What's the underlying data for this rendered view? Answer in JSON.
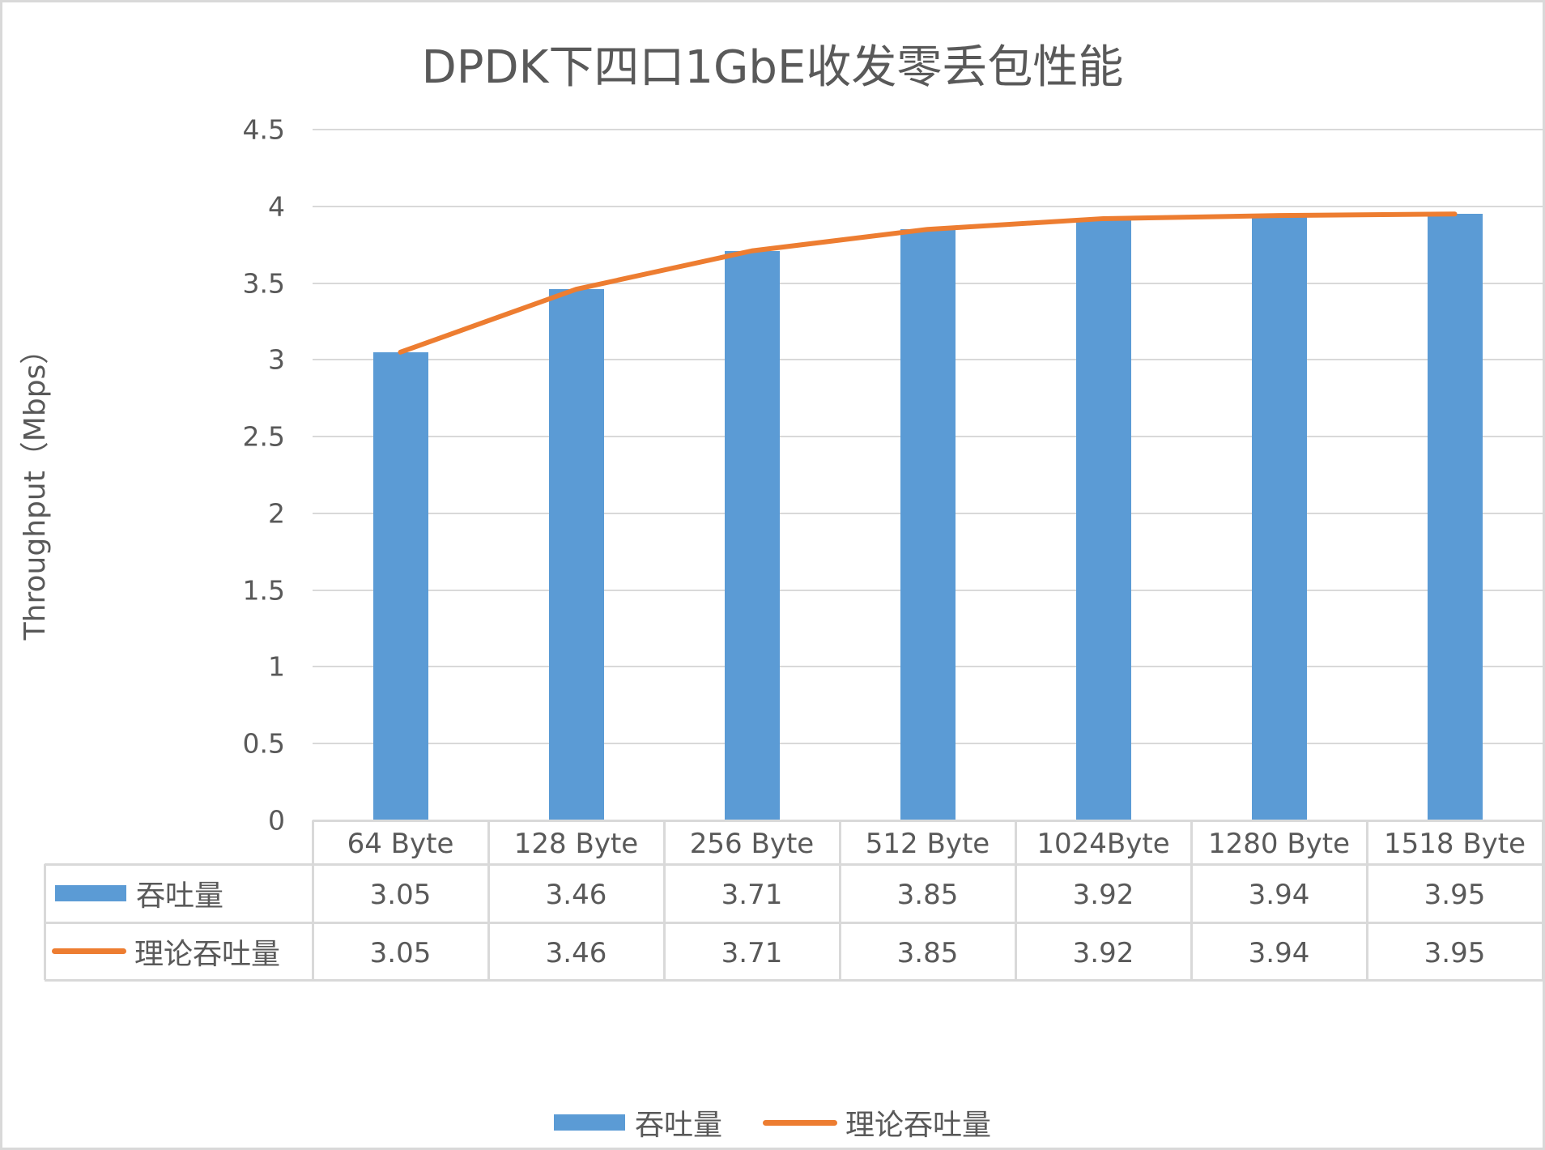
{
  "chart_data": {
    "type": "bar+line",
    "title": "DPDK下四口1GbE收发零丢包性能",
    "xlabel": "",
    "ylabel": "Throughput（Mbps）",
    "ylim": [
      0,
      4.5
    ],
    "yticks": [
      "0",
      "0.5",
      "1",
      "1.5",
      "2",
      "2.5",
      "3",
      "3.5",
      "4",
      "4.5"
    ],
    "grid": true,
    "legend_position": "bottom",
    "data_table": true,
    "categories": [
      "64 Byte",
      "128 Byte",
      "256 Byte",
      "512 Byte",
      "1024Byte",
      "1280 Byte",
      "1518 Byte"
    ],
    "series": [
      {
        "name": "吞吐量",
        "kind": "bar",
        "color": "#5B9BD5",
        "values": [
          3.05,
          3.46,
          3.71,
          3.85,
          3.92,
          3.94,
          3.95
        ]
      },
      {
        "name": "理论吞吐量",
        "kind": "line",
        "color": "#ED7D31",
        "values": [
          3.05,
          3.46,
          3.71,
          3.85,
          3.92,
          3.94,
          3.95
        ]
      }
    ]
  },
  "table": {
    "rows": [
      {
        "label": "吞吐量",
        "cells": [
          "3.05",
          "3.46",
          "3.71",
          "3.85",
          "3.92",
          "3.94",
          "3.95"
        ]
      },
      {
        "label": "理论吞吐量",
        "cells": [
          "3.05",
          "3.46",
          "3.71",
          "3.85",
          "3.92",
          "3.94",
          "3.95"
        ]
      }
    ]
  },
  "legend": {
    "items": [
      {
        "label": "吞吐量",
        "swatch": "bar"
      },
      {
        "label": "理论吞吐量",
        "swatch": "line"
      }
    ]
  },
  "colors": {
    "bar": "#5B9BD5",
    "line": "#ED7D31",
    "grid": "#D9D9D9",
    "text": "#595959"
  }
}
